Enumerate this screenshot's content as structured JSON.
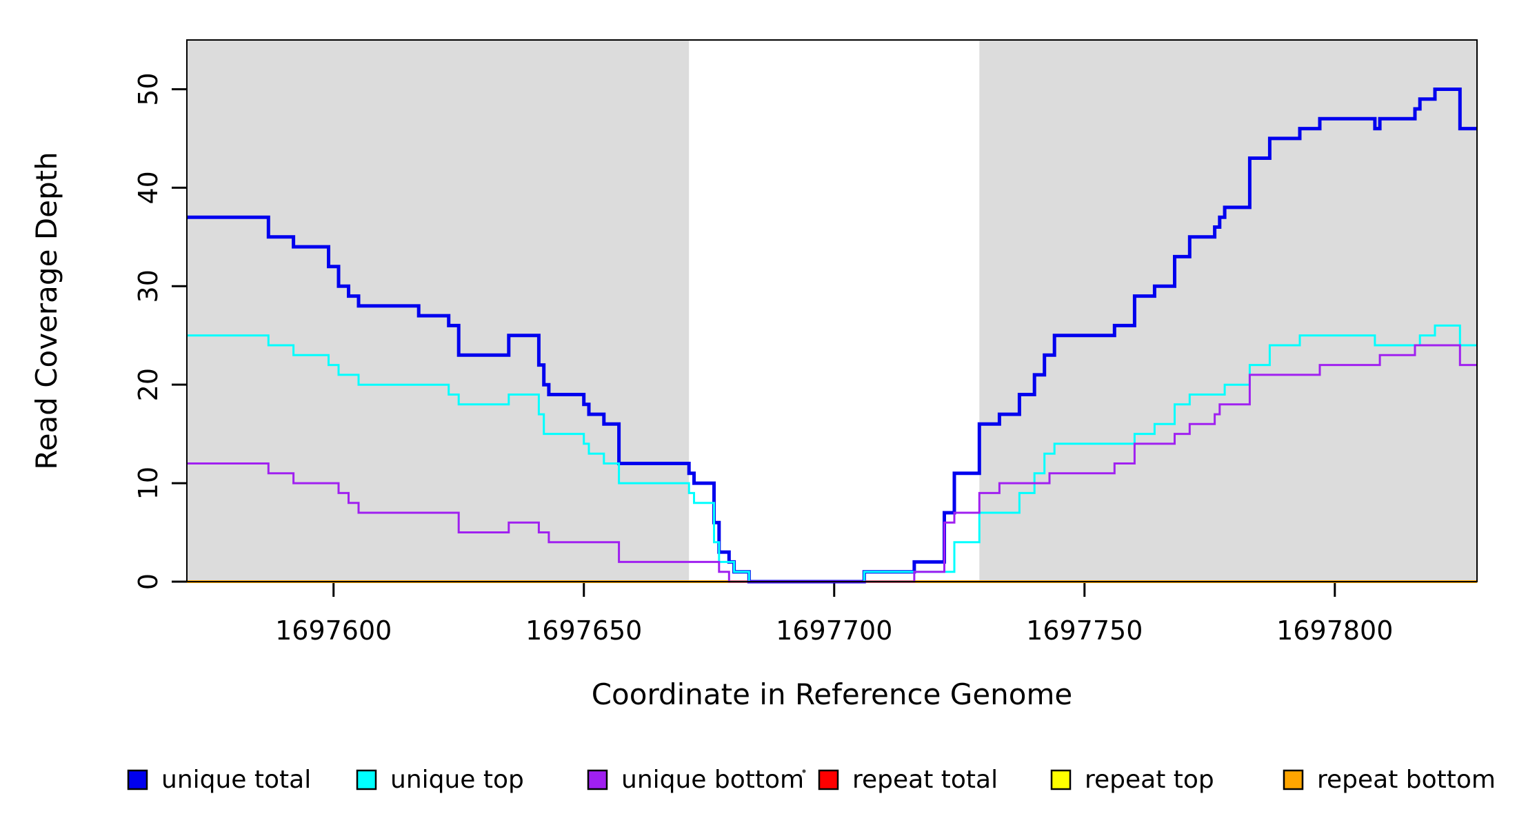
{
  "chart_data": {
    "type": "line",
    "subtype": "step",
    "title": "",
    "xlabel": "Coordinate in Reference Genome",
    "ylabel": "Read Coverage Depth",
    "xlim": [
      1697570.7,
      1697828.4
    ],
    "ylim": [
      0,
      55
    ],
    "x_ticks": [
      1697600,
      1697650,
      1697700,
      1697750,
      1697800
    ],
    "y_ticks": [
      0,
      10,
      20,
      30,
      40,
      50
    ],
    "grid": false,
    "legend_position": "bottom",
    "band_color": "#DCDCDC",
    "background_bands": [
      {
        "name": "left-unique-region",
        "x_start": 1697570.7,
        "x_end": 1697671
      },
      {
        "name": "right-unique-region",
        "x_start": 1697729,
        "x_end": 1697828.4
      }
    ],
    "series": [
      {
        "name": "repeat total",
        "color": "#FF0000",
        "width": 4,
        "points": [
          [
            1697570.7,
            0
          ]
        ]
      },
      {
        "name": "repeat top",
        "color": "#FFFF00",
        "width": 4,
        "points": [
          [
            1697570.7,
            0
          ]
        ]
      },
      {
        "name": "repeat bottom",
        "color": "#FFA500",
        "width": 4,
        "points": [
          [
            1697570.7,
            0
          ]
        ]
      },
      {
        "name": "unique total",
        "color": "#0000EE",
        "width": 5,
        "points": [
          [
            1697570.7,
            37
          ],
          [
            1697587,
            35
          ],
          [
            1697592,
            34
          ],
          [
            1697599,
            32
          ],
          [
            1697601,
            30
          ],
          [
            1697603,
            29
          ],
          [
            1697605,
            28
          ],
          [
            1697617,
            27
          ],
          [
            1697623,
            26
          ],
          [
            1697625,
            23
          ],
          [
            1697635,
            25
          ],
          [
            1697641,
            22
          ],
          [
            1697642,
            20
          ],
          [
            1697643,
            19
          ],
          [
            1697650,
            18
          ],
          [
            1697651,
            17
          ],
          [
            1697654,
            16
          ],
          [
            1697657,
            12
          ],
          [
            1697671,
            11
          ],
          [
            1697672,
            10
          ],
          [
            1697676,
            6
          ],
          [
            1697677,
            3
          ],
          [
            1697679,
            2
          ],
          [
            1697680,
            1
          ],
          [
            1697683,
            0
          ],
          [
            1697706,
            1
          ],
          [
            1697716,
            2
          ],
          [
            1697722,
            7
          ],
          [
            1697724,
            11
          ],
          [
            1697729,
            16
          ],
          [
            1697733,
            17
          ],
          [
            1697737,
            19
          ],
          [
            1697740,
            21
          ],
          [
            1697742,
            23
          ],
          [
            1697744,
            25
          ],
          [
            1697756,
            26
          ],
          [
            1697760,
            29
          ],
          [
            1697764,
            30
          ],
          [
            1697768,
            33
          ],
          [
            1697771,
            35
          ],
          [
            1697776,
            36
          ],
          [
            1697777,
            37
          ],
          [
            1697778,
            38
          ],
          [
            1697783,
            43
          ],
          [
            1697787,
            45
          ],
          [
            1697793,
            46
          ],
          [
            1697797,
            47
          ],
          [
            1697808,
            46
          ],
          [
            1697809,
            47
          ],
          [
            1697816,
            48
          ],
          [
            1697817,
            49
          ],
          [
            1697820,
            50
          ],
          [
            1697825,
            46
          ]
        ]
      },
      {
        "name": "unique top",
        "color": "#00FFFF",
        "width": 3,
        "points": [
          [
            1697570.7,
            25
          ],
          [
            1697587,
            24
          ],
          [
            1697592,
            23
          ],
          [
            1697599,
            22
          ],
          [
            1697601,
            21
          ],
          [
            1697605,
            20
          ],
          [
            1697623,
            19
          ],
          [
            1697625,
            18
          ],
          [
            1697635,
            19
          ],
          [
            1697641,
            17
          ],
          [
            1697642,
            15
          ],
          [
            1697650,
            14
          ],
          [
            1697651,
            13
          ],
          [
            1697654,
            12
          ],
          [
            1697657,
            10
          ],
          [
            1697671,
            9
          ],
          [
            1697672,
            8
          ],
          [
            1697676,
            4
          ],
          [
            1697677,
            2
          ],
          [
            1697680,
            1
          ],
          [
            1697683,
            0
          ],
          [
            1697706,
            1
          ],
          [
            1697724,
            4
          ],
          [
            1697729,
            7
          ],
          [
            1697737,
            9
          ],
          [
            1697740,
            11
          ],
          [
            1697742,
            13
          ],
          [
            1697744,
            14
          ],
          [
            1697760,
            15
          ],
          [
            1697764,
            16
          ],
          [
            1697768,
            18
          ],
          [
            1697771,
            19
          ],
          [
            1697778,
            20
          ],
          [
            1697783,
            22
          ],
          [
            1697787,
            24
          ],
          [
            1697793,
            25
          ],
          [
            1697808,
            24
          ],
          [
            1697817,
            25
          ],
          [
            1697820,
            26
          ],
          [
            1697825,
            24
          ]
        ]
      },
      {
        "name": "unique bottom",
        "color": "#A020F0",
        "width": 3,
        "points": [
          [
            1697570.7,
            12
          ],
          [
            1697587,
            11
          ],
          [
            1697592,
            10
          ],
          [
            1697601,
            9
          ],
          [
            1697603,
            8
          ],
          [
            1697605,
            7
          ],
          [
            1697625,
            5
          ],
          [
            1697635,
            6
          ],
          [
            1697641,
            5
          ],
          [
            1697643,
            4
          ],
          [
            1697657,
            2
          ],
          [
            1697677,
            1
          ],
          [
            1697679,
            0
          ],
          [
            1697716,
            1
          ],
          [
            1697722,
            6
          ],
          [
            1697724,
            7
          ],
          [
            1697729,
            9
          ],
          [
            1697733,
            10
          ],
          [
            1697743,
            11
          ],
          [
            1697756,
            12
          ],
          [
            1697760,
            14
          ],
          [
            1697768,
            15
          ],
          [
            1697771,
            16
          ],
          [
            1697776,
            17
          ],
          [
            1697777,
            18
          ],
          [
            1697783,
            21
          ],
          [
            1697797,
            22
          ],
          [
            1697809,
            23
          ],
          [
            1697816,
            24
          ],
          [
            1697825,
            22
          ]
        ]
      }
    ],
    "legend": [
      {
        "label": "unique total",
        "color": "#0000EE"
      },
      {
        "label": "unique top",
        "color": "#00FFFF"
      },
      {
        "label": "unique bottom",
        "color": "#A020F0"
      },
      {
        "label": "repeat total",
        "color": "#FF0000"
      },
      {
        "label": "repeat top",
        "color": "#FFFF00"
      },
      {
        "label": "repeat bottom",
        "color": "#FFA500"
      }
    ]
  }
}
